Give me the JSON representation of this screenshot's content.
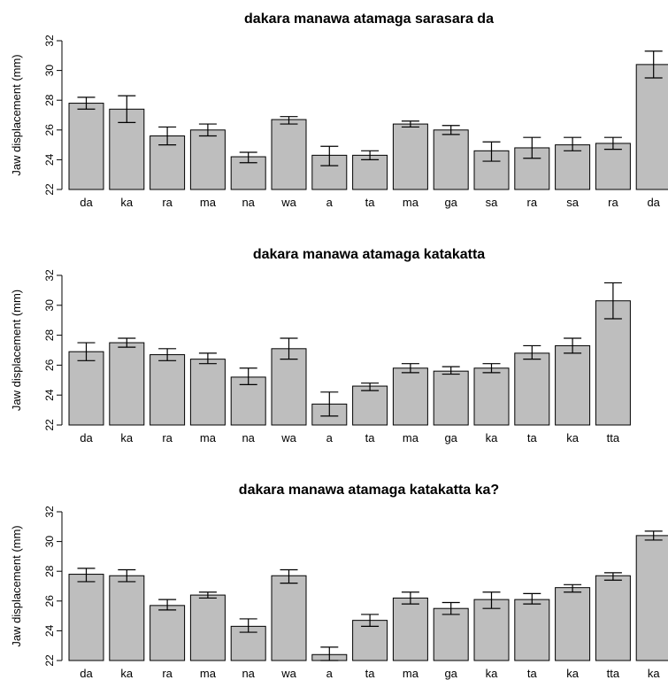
{
  "chart_data": [
    {
      "type": "bar",
      "title": "dakara manawa atamaga sarasara da",
      "ylabel": "Jaw displacement (mm)",
      "ylim": [
        22,
        32
      ],
      "yticks": [
        "22",
        "24",
        "26",
        "28",
        "30",
        "32"
      ],
      "categories": [
        "da",
        "ka",
        "ra",
        "ma",
        "na",
        "wa",
        "a",
        "ta",
        "ma",
        "ga",
        "sa",
        "ra",
        "sa",
        "ra",
        "da"
      ],
      "values": [
        27.8,
        27.4,
        25.6,
        26.0,
        24.2,
        26.7,
        24.3,
        24.3,
        26.4,
        26.0,
        24.6,
        24.8,
        25.0,
        25.1,
        30.4
      ],
      "error_low": [
        27.4,
        26.5,
        25.0,
        25.6,
        23.8,
        26.4,
        23.6,
        24.0,
        26.2,
        25.7,
        23.9,
        24.1,
        24.6,
        24.7,
        29.5
      ],
      "error_high": [
        28.2,
        28.3,
        26.2,
        26.4,
        24.5,
        26.9,
        24.9,
        24.6,
        26.6,
        26.3,
        25.2,
        25.5,
        25.5,
        25.5,
        31.3
      ]
    },
    {
      "type": "bar",
      "title": "dakara manawa atamaga katakatta",
      "ylabel": "Jaw displacement (mm)",
      "ylim": [
        22,
        32
      ],
      "yticks": [
        "22",
        "24",
        "26",
        "28",
        "30",
        "32"
      ],
      "categories": [
        "da",
        "ka",
        "ra",
        "ma",
        "na",
        "wa",
        "a",
        "ta",
        "ma",
        "ga",
        "ka",
        "ta",
        "ka",
        "tta"
      ],
      "values": [
        26.9,
        27.5,
        26.7,
        26.4,
        25.2,
        27.1,
        23.4,
        24.6,
        25.8,
        25.6,
        25.8,
        26.8,
        27.3,
        30.3
      ],
      "error_low": [
        26.3,
        27.2,
        26.3,
        26.1,
        24.7,
        26.4,
        22.6,
        24.3,
        25.5,
        25.4,
        25.5,
        26.4,
        26.8,
        29.1
      ],
      "error_high": [
        27.5,
        27.8,
        27.1,
        26.8,
        25.8,
        27.8,
        24.2,
        24.8,
        26.1,
        25.9,
        26.1,
        27.3,
        27.8,
        31.5
      ]
    },
    {
      "type": "bar",
      "title": "dakara manawa atamaga katakatta ka?",
      "ylabel": "Jaw displacement (mm)",
      "ylim": [
        22,
        32
      ],
      "yticks": [
        "22",
        "24",
        "26",
        "28",
        "30",
        "32"
      ],
      "categories": [
        "da",
        "ka",
        "ra",
        "ma",
        "na",
        "wa",
        "a",
        "ta",
        "ma",
        "ga",
        "ka",
        "ta",
        "ka",
        "tta",
        "ka"
      ],
      "values": [
        27.8,
        27.7,
        25.7,
        26.4,
        24.3,
        27.7,
        22.4,
        24.7,
        26.2,
        25.5,
        26.1,
        26.1,
        26.9,
        27.7,
        30.4
      ],
      "error_low": [
        27.3,
        27.3,
        25.4,
        26.2,
        23.9,
        27.2,
        22.0,
        24.3,
        25.8,
        25.1,
        25.5,
        25.8,
        26.6,
        27.4,
        30.1
      ],
      "error_high": [
        28.2,
        28.1,
        26.1,
        26.6,
        24.8,
        28.1,
        22.9,
        25.1,
        26.6,
        25.9,
        26.6,
        26.5,
        27.1,
        27.9,
        30.7
      ]
    }
  ]
}
